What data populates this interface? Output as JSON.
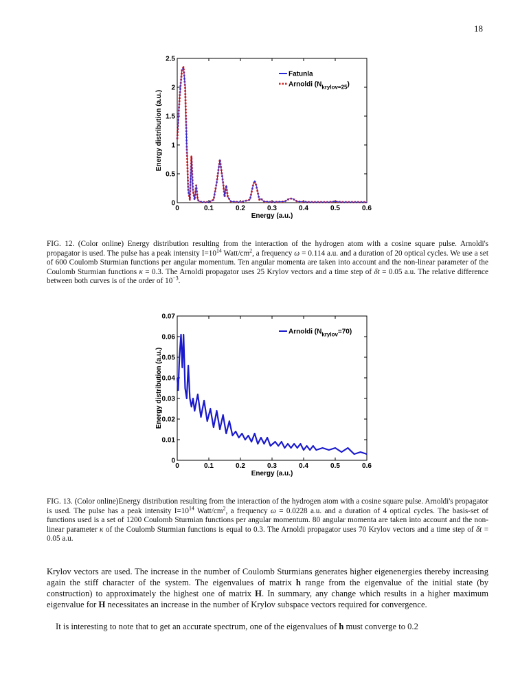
{
  "page_number": "18",
  "chart_data": [
    {
      "type": "line",
      "xlabel": "Energy (a.u.)",
      "ylabel": "Energy distribution (a.u.)",
      "xlim": [
        0,
        0.6
      ],
      "xticks": [
        0,
        0.1,
        0.2,
        0.3,
        0.4,
        0.5,
        0.6
      ],
      "ylim": [
        0,
        2.5
      ],
      "yticks": [
        0,
        0.5,
        1,
        1.5,
        2,
        2.5
      ],
      "legend": "upper right",
      "x": [
        0,
        0.005,
        0.01,
        0.015,
        0.02,
        0.025,
        0.03,
        0.035,
        0.04,
        0.045,
        0.05,
        0.055,
        0.06,
        0.065,
        0.07,
        0.08,
        0.1,
        0.115,
        0.125,
        0.135,
        0.145,
        0.15,
        0.155,
        0.16,
        0.17,
        0.2,
        0.23,
        0.24,
        0.245,
        0.25,
        0.26,
        0.265,
        0.275,
        0.3,
        0.34,
        0.355,
        0.365,
        0.38,
        0.42,
        0.48,
        0.5,
        0.52,
        0.6
      ],
      "series": [
        {
          "name": "Fatunla",
          "color": "#2a2ad8",
          "line_style": "solid",
          "values": [
            1.1,
            1.6,
            2.0,
            2.3,
            2.35,
            2.0,
            1.0,
            0.2,
            0.05,
            0.8,
            0.2,
            0.05,
            0.3,
            0.05,
            0.02,
            0.01,
            0.01,
            0.05,
            0.35,
            0.75,
            0.35,
            0.1,
            0.3,
            0.1,
            0.02,
            0.01,
            0.05,
            0.3,
            0.38,
            0.3,
            0.05,
            0.07,
            0.02,
            0.01,
            0.02,
            0.07,
            0.07,
            0.02,
            0.01,
            0.01,
            0.02,
            0.01,
            0.01
          ]
        },
        {
          "name": "Arnoldi (N",
          "name_sub": "krylov=25",
          "name_end": ")",
          "color": "#d42a2a",
          "line_style": "dotted",
          "values": [
            1.1,
            1.6,
            2.0,
            2.3,
            2.35,
            2.0,
            1.0,
            0.2,
            0.05,
            0.8,
            0.2,
            0.05,
            0.3,
            0.05,
            0.02,
            0.01,
            0.01,
            0.05,
            0.35,
            0.75,
            0.35,
            0.1,
            0.3,
            0.1,
            0.02,
            0.01,
            0.05,
            0.3,
            0.38,
            0.3,
            0.05,
            0.07,
            0.02,
            0.01,
            0.02,
            0.07,
            0.07,
            0.02,
            0.01,
            0.01,
            0.02,
            0.01,
            0.01
          ]
        }
      ]
    },
    {
      "type": "line",
      "xlabel": "Energy (a.u.)",
      "ylabel": "Energy distribution (a.u.)",
      "xlim": [
        0,
        0.6
      ],
      "xticks": [
        0,
        0.1,
        0.2,
        0.3,
        0.4,
        0.5,
        0.6
      ],
      "ylim": [
        0,
        0.07
      ],
      "yticks": [
        0,
        0.01,
        0.02,
        0.03,
        0.04,
        0.05,
        0.06,
        0.07
      ],
      "legend": "upper right",
      "x": [
        0,
        0.003,
        0.007,
        0.012,
        0.016,
        0.02,
        0.025,
        0.03,
        0.035,
        0.04,
        0.045,
        0.05,
        0.055,
        0.065,
        0.075,
        0.085,
        0.095,
        0.105,
        0.115,
        0.125,
        0.135,
        0.145,
        0.155,
        0.165,
        0.175,
        0.185,
        0.195,
        0.205,
        0.215,
        0.225,
        0.235,
        0.245,
        0.255,
        0.265,
        0.275,
        0.285,
        0.295,
        0.31,
        0.32,
        0.33,
        0.34,
        0.35,
        0.36,
        0.37,
        0.38,
        0.39,
        0.4,
        0.41,
        0.42,
        0.43,
        0.44,
        0.46,
        0.48,
        0.5,
        0.52,
        0.54,
        0.56,
        0.58,
        0.6
      ],
      "series": [
        {
          "name": "Arnoldi (N",
          "name_sub": "krylov",
          "name_end": "=70)",
          "color": "#1a1acc",
          "line_style": "solid",
          "values": [
            0.04,
            0.034,
            0.05,
            0.061,
            0.045,
            0.061,
            0.035,
            0.03,
            0.046,
            0.03,
            0.026,
            0.03,
            0.024,
            0.032,
            0.021,
            0.029,
            0.019,
            0.025,
            0.016,
            0.024,
            0.015,
            0.022,
            0.013,
            0.019,
            0.012,
            0.014,
            0.011,
            0.013,
            0.01,
            0.012,
            0.009,
            0.013,
            0.008,
            0.011,
            0.008,
            0.011,
            0.007,
            0.009,
            0.007,
            0.009,
            0.006,
            0.008,
            0.006,
            0.008,
            0.006,
            0.008,
            0.005,
            0.007,
            0.005,
            0.007,
            0.005,
            0.006,
            0.005,
            0.006,
            0.004,
            0.006,
            0.003,
            0.004,
            0.003
          ]
        }
      ]
    }
  ],
  "captions": [
    [
      {
        "text": "FIG. 12. (Color online) Energy distribution resulting from the interaction of the hydrogen atom with a cosine square pulse. Arnoldi's propagator is used. The pulse has a peak intensity I=10"
      },
      {
        "text": "14",
        "sup": true
      },
      {
        "text": " Watt/cm"
      },
      {
        "text": "2",
        "sup": true
      },
      {
        "text": ", a frequency "
      },
      {
        "text": "ω",
        "italic": true
      },
      {
        "text": " = 0.114 a.u. and a duration of 20 optical cycles. We use a set of 600 Coulomb Sturmian functions per angular momentum. Ten angular momenta are taken into account and the non-linear parameter of the Coulomb Sturmian functions "
      },
      {
        "text": "κ",
        "italic": true
      },
      {
        "text": " = 0.3. The Arnoldi propagator uses 25 Krylov vectors and a time step of "
      },
      {
        "text": "δt",
        "italic": true
      },
      {
        "text": " = 0.05 a.u. The relative difference between both curves is of the order of 10"
      },
      {
        "text": "−3",
        "sup": true
      },
      {
        "text": "."
      }
    ],
    [
      {
        "text": "FIG. 13. (Color online)Energy distribution resulting from the interaction of the hydrogen atom with a cosine square pulse. Arnoldi's propagator is used. The pulse has a peak intensity I=10"
      },
      {
        "text": "14",
        "sup": true
      },
      {
        "text": " Watt/cm"
      },
      {
        "text": "2",
        "sup": true
      },
      {
        "text": ", a frequency "
      },
      {
        "text": "ω",
        "italic": true
      },
      {
        "text": " = 0.0228 a.u. and a duration of 4 optical cycles. The basis-set of functions used is a set of 1200 Coulomb Sturmian functions per angular momentum. 80 angular momenta are taken into account and the non-linear parameter "
      },
      {
        "text": "κ",
        "italic": true
      },
      {
        "text": " of the Coulomb Sturmian functions is equal to 0.3. The Arnoldi propagator uses 70 Krylov vectors and a time step of "
      },
      {
        "text": "δt",
        "italic": true
      },
      {
        "text": " = 0.05 a.u."
      }
    ]
  ],
  "paragraphs": [
    [
      {
        "text": "Krylov vectors are used. The increase in the number of Coulomb Sturmians generates higher eigenenergies thereby increasing again the stiff character of the system. The eigenvalues of matrix "
      },
      {
        "text": "h",
        "bold": true
      },
      {
        "text": " range from the eigenvalue of the initial state (by construction) to approximately the highest one of matrix "
      },
      {
        "text": "H",
        "bold": true
      },
      {
        "text": ". In summary, any change which results in a higher maximum eigenvalue for "
      },
      {
        "text": "H",
        "bold": true
      },
      {
        "text": " necessitates an increase in the number of Krylov subspace vectors required for convergence."
      }
    ],
    [
      {
        "text": "It is interesting to note that to get an accurate spectrum, one of the eigenvalues of "
      },
      {
        "text": "h",
        "bold": true
      },
      {
        "text": " must converge to 0.2"
      }
    ]
  ]
}
